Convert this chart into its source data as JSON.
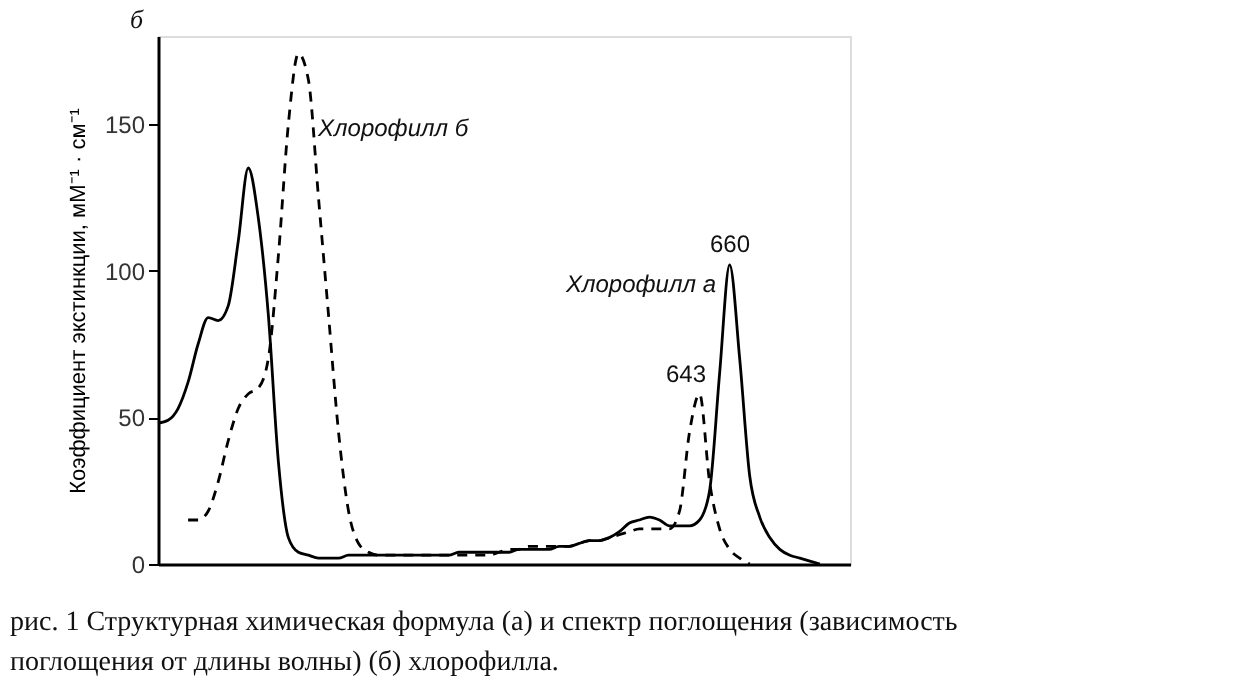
{
  "chart_data": {
    "type": "line",
    "ylabel": "Коэффициент экстинкции, мМ⁻¹ · см⁻¹",
    "categories": [
      null,
      null,
      null,
      null,
      null,
      null,
      null,
      null,
      null,
      null,
      null,
      null,
      null,
      null,
      null,
      null,
      null,
      null,
      null,
      null,
      null,
      null,
      null,
      null,
      null,
      null,
      null,
      null,
      null,
      null,
      null,
      null,
      null,
      null,
      null,
      null,
      null,
      null,
      null,
      null,
      null,
      null,
      null,
      null,
      null,
      null,
      null,
      null,
      null,
      null,
      null,
      null,
      null,
      null,
      null,
      null,
      null,
      null,
      null,
      null,
      null,
      null,
      null,
      null,
      null,
      null,
      null,
      null,
      null,
      null
    ],
    "series": [
      {
        "name": "Хлорофилл а",
        "color": "#000000",
        "line_style": "solid",
        "values": [
          48,
          49,
          53,
          62,
          75,
          84,
          83,
          88,
          110,
          135,
          118,
          85,
          35,
          9,
          4,
          3,
          2,
          2,
          2,
          3,
          3,
          3,
          3,
          3,
          3,
          3,
          3,
          3,
          3,
          3,
          4,
          4,
          4,
          4,
          4,
          4,
          5,
          5,
          5,
          5,
          6,
          6,
          7,
          8,
          8,
          9,
          11,
          14,
          15,
          16,
          15,
          13,
          13,
          13,
          15,
          25,
          65,
          102,
          70,
          30,
          16,
          9,
          5,
          3,
          2,
          1,
          0,
          null,
          null,
          null
        ]
      },
      {
        "name": "Хлорофилл б",
        "color": "#000000",
        "line_style": "dashed",
        "values": [
          null,
          null,
          null,
          15,
          15,
          18,
          28,
          42,
          53,
          58,
          60,
          70,
          105,
          150,
          174,
          165,
          125,
          85,
          45,
          18,
          7,
          4,
          3,
          3,
          3,
          3,
          3,
          3,
          3,
          3,
          3,
          3,
          3,
          3,
          4,
          5,
          5,
          6,
          6,
          6,
          6,
          6,
          7,
          8,
          8,
          9,
          10,
          11,
          12,
          12,
          12,
          12,
          18,
          45,
          58,
          28,
          12,
          5,
          2,
          0,
          null,
          null,
          null,
          null,
          null,
          null,
          null,
          null,
          null,
          null
        ]
      }
    ],
    "ylim": [
      0,
      180
    ],
    "yticks": [
      0,
      50,
      100,
      150
    ],
    "grid": false,
    "marker": "none",
    "annotations": [
      "б",
      "660",
      "643",
      "рис. 1 Структурная химическая формула (а) и спектр поглощения (зависимость поглощения от длины волны) (б) хлорофилла."
    ]
  }
}
